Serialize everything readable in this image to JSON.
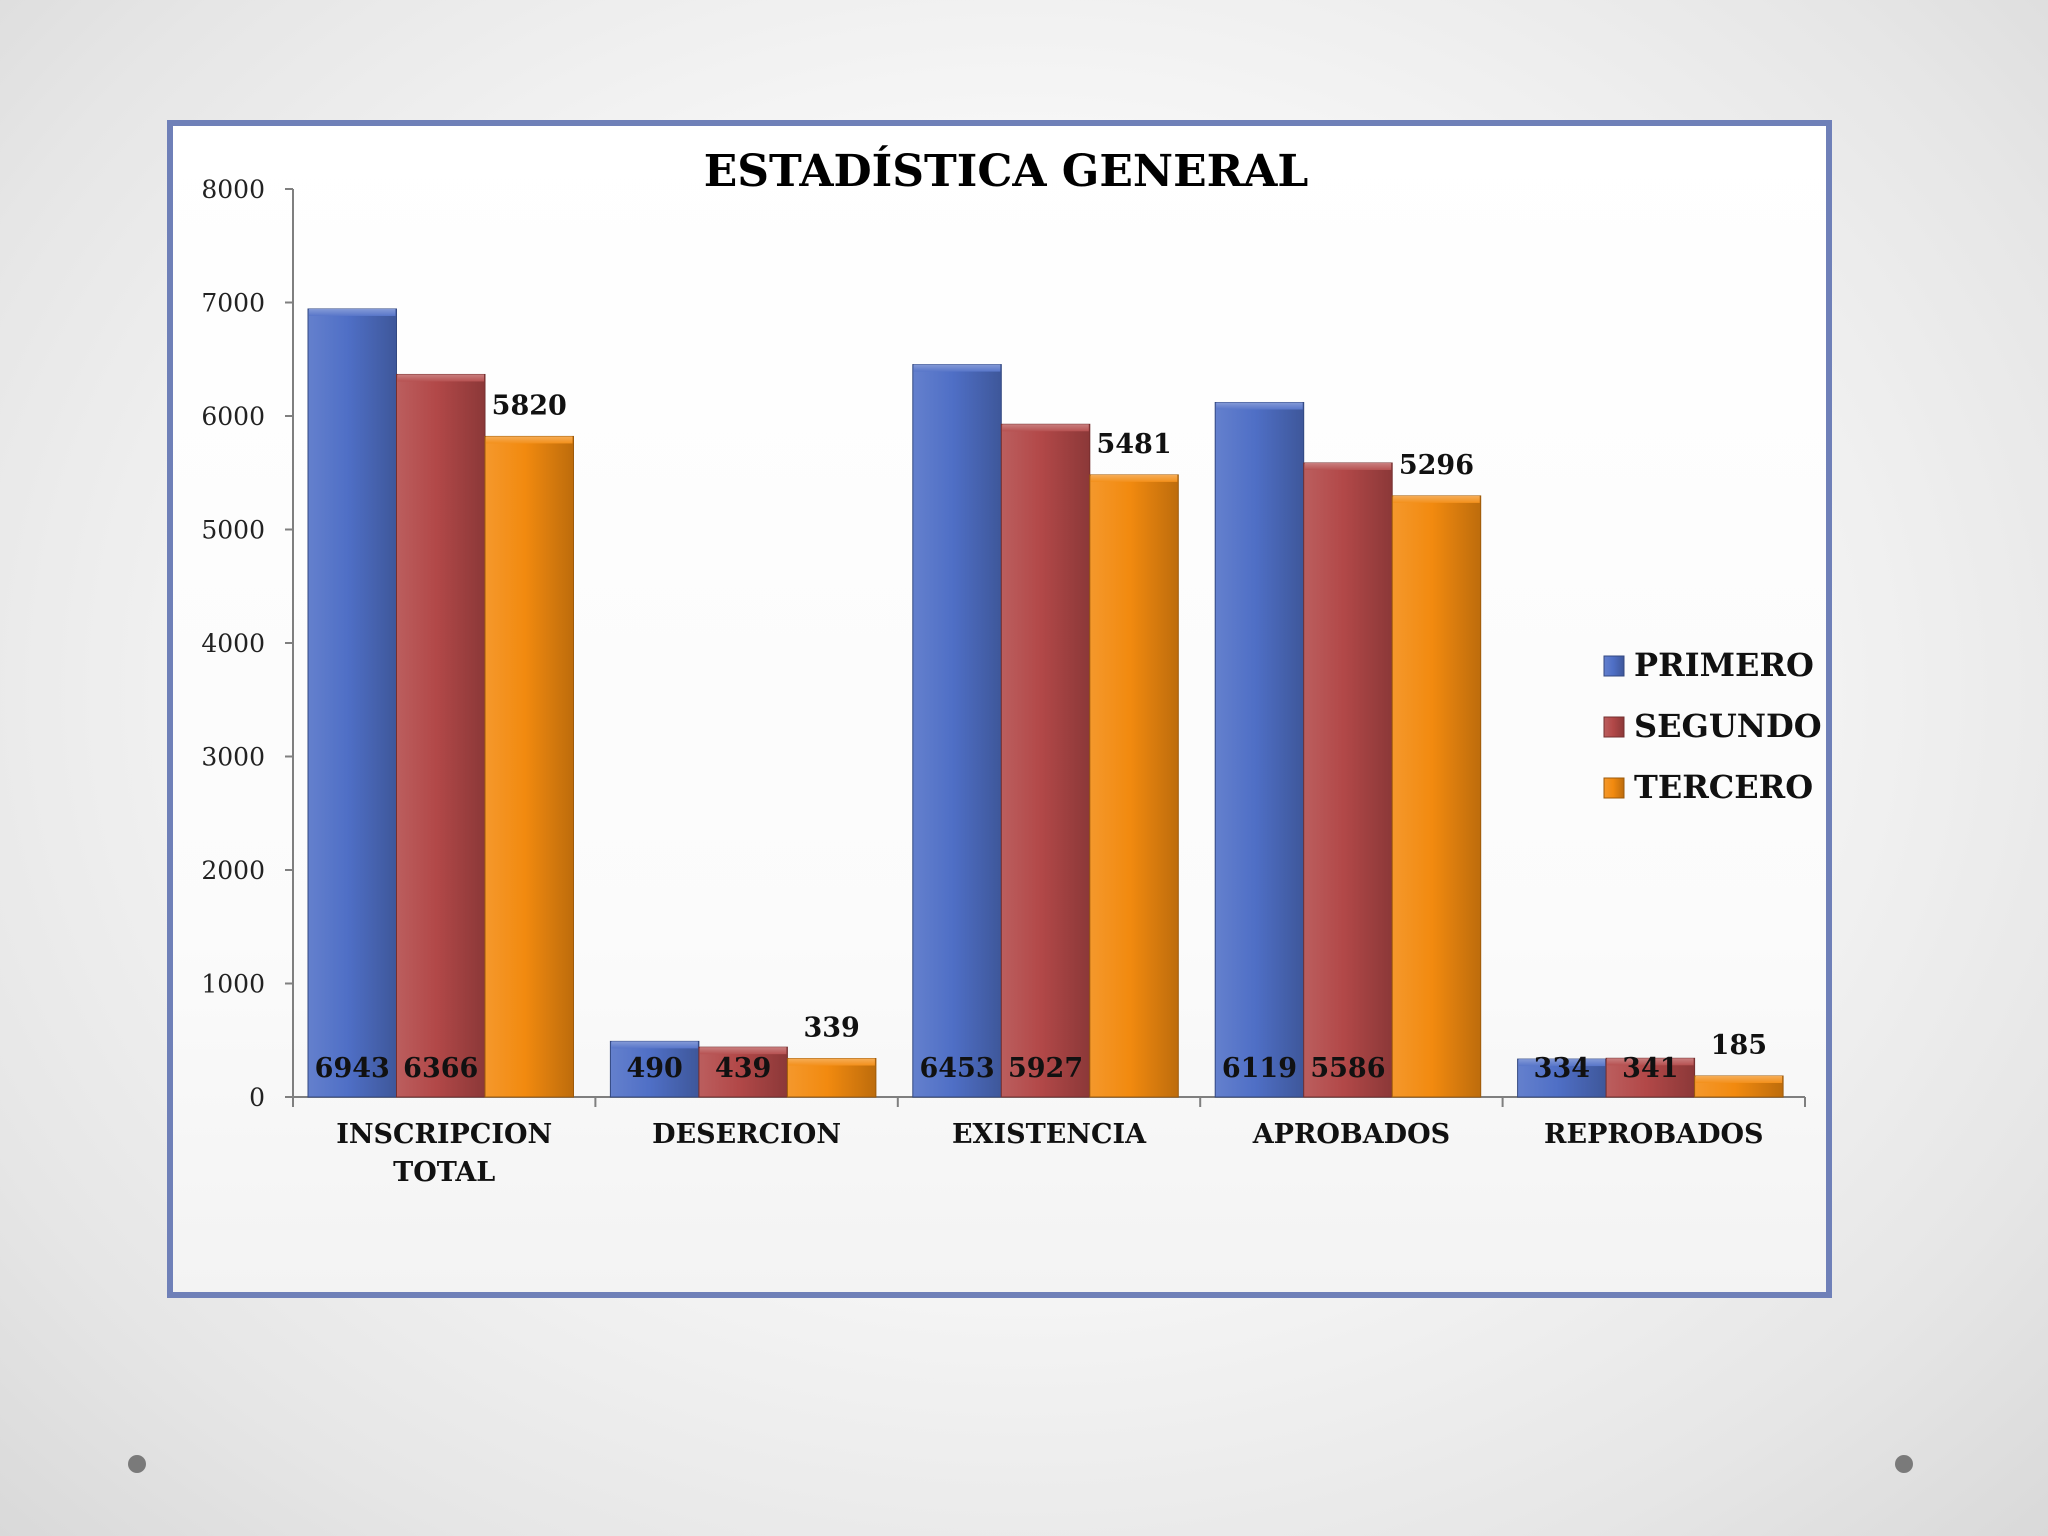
{
  "chart_data": {
    "type": "bar",
    "title": "ESTADÍSTICA GENERAL",
    "xlabel": "",
    "ylabel": "",
    "ylim": [
      0,
      8000
    ],
    "yticks": [
      0,
      1000,
      2000,
      3000,
      4000,
      5000,
      6000,
      7000,
      8000
    ],
    "grid": false,
    "legend_position": "right",
    "categories": [
      [
        "INSCRIPCION",
        "TOTAL"
      ],
      [
        "DESERCION"
      ],
      [
        "EXISTENCIA"
      ],
      [
        "APROBADOS"
      ],
      [
        "REPROBADOS"
      ]
    ],
    "series": [
      {
        "name": "PRIMERO",
        "values": [
          6943,
          490,
          6453,
          6119,
          334
        ],
        "color": "#4f6fc6",
        "label_position": "bottom"
      },
      {
        "name": "SEGUNDO",
        "values": [
          6366,
          439,
          5927,
          5586,
          341
        ],
        "color": "#b24848",
        "label_position": "middle"
      },
      {
        "name": "TERCERO",
        "values": [
          5820,
          339,
          5481,
          5296,
          185
        ],
        "color": "#f28a0f",
        "label_position": "top"
      }
    ]
  },
  "colors": {
    "frame_border": "#6f80b8",
    "axis": "#7f7f7f"
  }
}
